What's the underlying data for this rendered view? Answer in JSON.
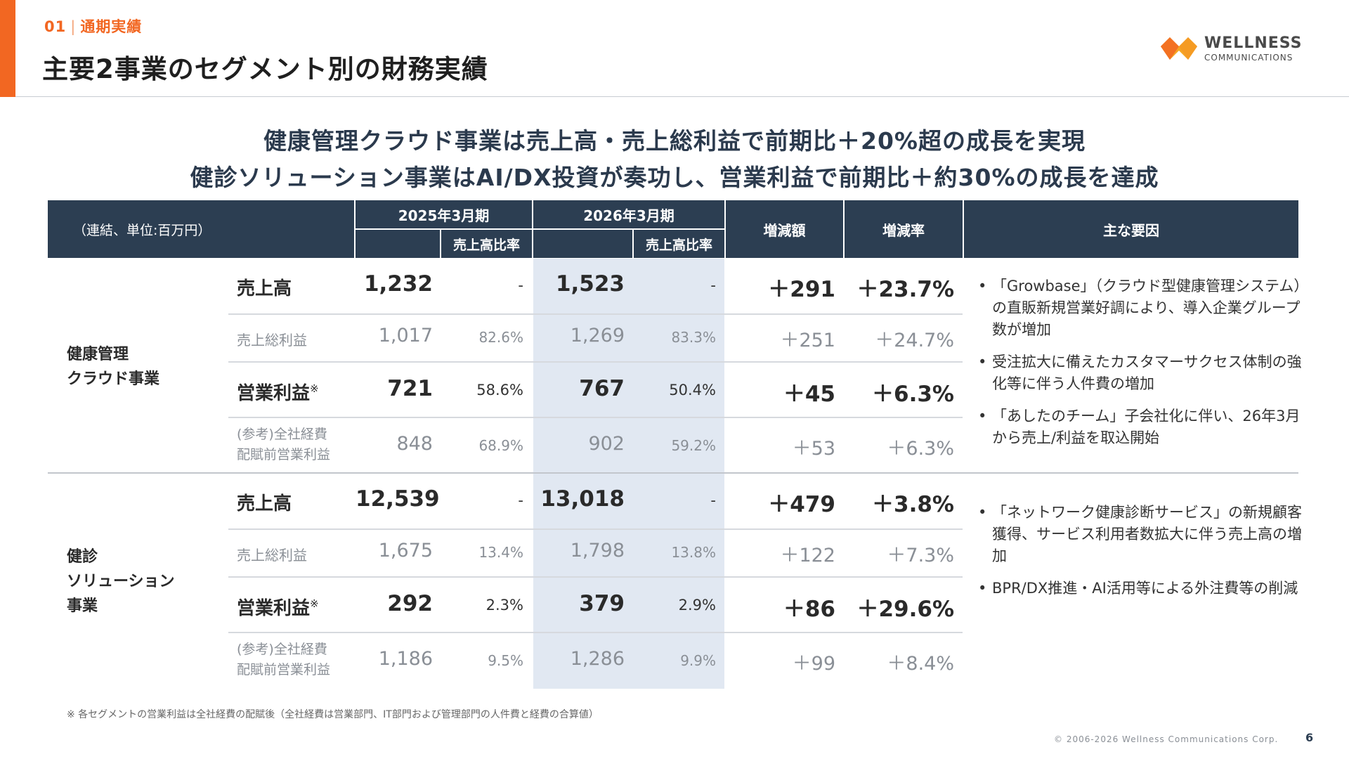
{
  "header": {
    "section_number": "01",
    "section_name": "通期実績",
    "title": "主要2事業のセグメント別の財務実績"
  },
  "logo": {
    "name": "WELLNESS",
    "subtitle": "COMMUNICATIONS"
  },
  "headlines": [
    "健康管理クラウド事業は売上高・売上総利益で前期比＋20%超の成長を実現",
    "健診ソリューション事業はAI/DX投資が奏功し、営業利益で前期比＋約30%の成長を達成"
  ],
  "table": {
    "unit_label": "（連結、単位:百万円）",
    "fy2025": "2025年3月期",
    "fy2026": "2026年3月期",
    "ratio_header": "売上高比率",
    "change_amount": "増減額",
    "change_rate": "増減率",
    "factors": "主な要因",
    "note_mark": "※",
    "segments": [
      {
        "name_lines": [
          "健康管理",
          "クラウド事業"
        ],
        "rows": [
          {
            "label": "売上高",
            "v2025": "1,232",
            "r2025": "-",
            "v2026": "1,523",
            "r2026": "-",
            "diff": "＋291",
            "rate": "＋23.7%"
          },
          {
            "label": "売上総利益",
            "v2025": "1,017",
            "r2025": "82.6%",
            "v2026": "1,269",
            "r2026": "83.3%",
            "diff": "＋251",
            "rate": "＋24.7%"
          },
          {
            "label": "営業利益",
            "v2025": "721",
            "r2025": "58.6%",
            "v2026": "767",
            "r2026": "50.4%",
            "diff": "＋45",
            "rate": "＋6.3%"
          },
          {
            "label_lines": [
              "(参考)全社経費",
              "配賦前営業利益"
            ],
            "v2025": "848",
            "r2025": "68.9%",
            "v2026": "902",
            "r2026": "59.2%",
            "diff": "＋53",
            "rate": "＋6.3%"
          }
        ],
        "factors": [
          "「Growbase」（クラウド型健康管理システム）の直販新規営業好調により、導入企業グループ数が増加",
          "受注拡大に備えたカスタマーサクセス体制の強化等に伴う人件費の増加",
          "「あしたのチーム」子会社化に伴い、26年3月から売上/利益を取込開始"
        ]
      },
      {
        "name_lines": [
          "健診",
          "ソリューション",
          "事業"
        ],
        "rows": [
          {
            "label": "売上高",
            "v2025": "12,539",
            "r2025": "-",
            "v2026": "13,018",
            "r2026": "-",
            "diff": "＋479",
            "rate": "＋3.8%"
          },
          {
            "label": "売上総利益",
            "v2025": "1,675",
            "r2025": "13.4%",
            "v2026": "1,798",
            "r2026": "13.8%",
            "diff": "＋122",
            "rate": "＋7.3%"
          },
          {
            "label": "営業利益",
            "v2025": "292",
            "r2025": "2.3%",
            "v2026": "379",
            "r2026": "2.9%",
            "diff": "＋86",
            "rate": "＋29.6%"
          },
          {
            "label_lines": [
              "(参考)全社経費",
              "配賦前営業利益"
            ],
            "v2025": "1,186",
            "r2025": "9.5%",
            "v2026": "1,286",
            "r2026": "9.9%",
            "diff": "＋99",
            "rate": "＋8.4%"
          }
        ],
        "factors": [
          "「ネットワーク健康診断サービス」の新規顧客獲得、サービス利用者数拡大に伴う売上高の増加",
          "BPR/DX推進・AI活用等による外注費等の削減"
        ]
      }
    ]
  },
  "footnote": "※ 各セグメントの営業利益は全社経費の配賦後（全社経費は営業部門、IT部門および管理部門の人件費と経費の合算値）",
  "copyright": "© 2006-2026 Wellness Communications Corp.",
  "page_number": "6",
  "colors": {
    "accent": "#f26722",
    "header_bg": "#2c3e52",
    "highlight_column": "#e1e8f2"
  }
}
